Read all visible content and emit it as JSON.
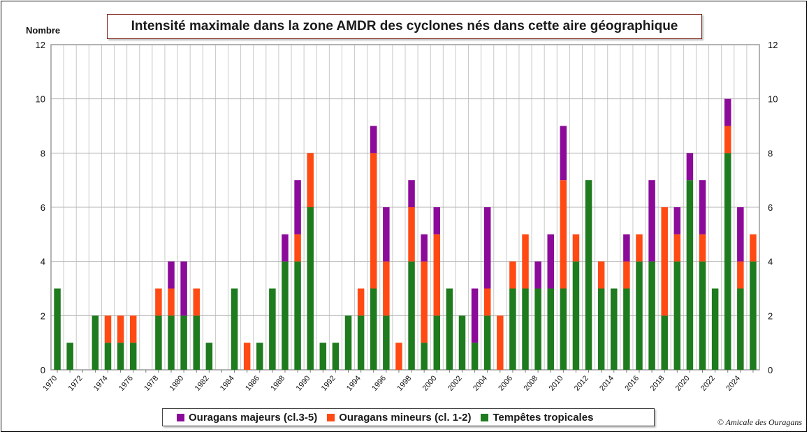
{
  "title": "Intensité maximale dans la zone AMDR des cyclones nés dans cette aire géographique",
  "credit": "© Amicale des Ouragans",
  "chart_data": {
    "type": "bar",
    "stacked": true,
    "ylabel": "Nombre",
    "ylim": [
      0,
      12
    ],
    "yticks": [
      0,
      2,
      4,
      6,
      8,
      10,
      12
    ],
    "grid": true,
    "legend_position": "bottom",
    "years": [
      1970,
      1971,
      1972,
      1973,
      1974,
      1975,
      1976,
      1977,
      1978,
      1979,
      1980,
      1981,
      1982,
      1983,
      1984,
      1985,
      1986,
      1987,
      1988,
      1989,
      1990,
      1991,
      1992,
      1993,
      1994,
      1995,
      1996,
      1997,
      1998,
      1999,
      2000,
      2001,
      2002,
      2003,
      2004,
      2005,
      2006,
      2007,
      2008,
      2009,
      2010,
      2011,
      2012,
      2013,
      2014,
      2015,
      2016,
      2017,
      2018,
      2019,
      2020,
      2021,
      2022,
      2023,
      2024,
      2025
    ],
    "xtick_labels": [
      "1970",
      "1972",
      "1974",
      "1976",
      "1978",
      "1980",
      "1982",
      "1984",
      "1986",
      "1988",
      "1990",
      "1992",
      "1994",
      "1996",
      "1998",
      "2000",
      "2002",
      "2004",
      "2006",
      "2008",
      "2010",
      "2012",
      "2014",
      "2016",
      "2018",
      "2020",
      "2022",
      "2024"
    ],
    "series": [
      {
        "name": "Tempêtes tropicales",
        "color": "#1e7b1e",
        "values": [
          3,
          1,
          0,
          2,
          1,
          1,
          1,
          0,
          2,
          2,
          2,
          2,
          1,
          0,
          3,
          0,
          1,
          3,
          4,
          4,
          6,
          1,
          1,
          2,
          2,
          3,
          2,
          0,
          4,
          1,
          2,
          3,
          2,
          1,
          2,
          0,
          3,
          3,
          3,
          3,
          3,
          4,
          7,
          3,
          3,
          3,
          4,
          4,
          2,
          4,
          7,
          4,
          3,
          8,
          3,
          4
        ]
      },
      {
        "name": "Ouragans mineurs (cl. 1-2)",
        "color": "#ff4a14",
        "values": [
          0,
          0,
          0,
          0,
          1,
          1,
          1,
          0,
          1,
          1,
          0,
          1,
          0,
          0,
          0,
          1,
          0,
          0,
          0,
          1,
          2,
          0,
          0,
          0,
          1,
          5,
          2,
          1,
          2,
          3,
          3,
          0,
          0,
          0,
          1,
          2,
          1,
          2,
          0,
          0,
          4,
          1,
          0,
          1,
          0,
          1,
          1,
          0,
          4,
          1,
          0,
          1,
          0,
          1,
          1,
          1
        ]
      },
      {
        "name": "Ouragans majeurs (cl.3-5)",
        "color": "#8b0a9a",
        "values": [
          0,
          0,
          0,
          0,
          0,
          0,
          0,
          0,
          0,
          1,
          2,
          0,
          0,
          0,
          0,
          0,
          0,
          0,
          1,
          2,
          0,
          0,
          0,
          0,
          0,
          1,
          2,
          0,
          1,
          1,
          1,
          0,
          0,
          2,
          3,
          0,
          0,
          0,
          1,
          2,
          2,
          0,
          0,
          0,
          0,
          1,
          0,
          3,
          0,
          1,
          1,
          2,
          0,
          1,
          2,
          0
        ]
      }
    ]
  },
  "legend": {
    "items": [
      {
        "label": "Ouragans majeurs (cl.3-5)",
        "color": "#8b0a9a"
      },
      {
        "label": "Ouragans mineurs (cl. 1-2)",
        "color": "#ff4a14"
      },
      {
        "label": "Tempêtes tropicales",
        "color": "#1e7b1e"
      }
    ]
  }
}
